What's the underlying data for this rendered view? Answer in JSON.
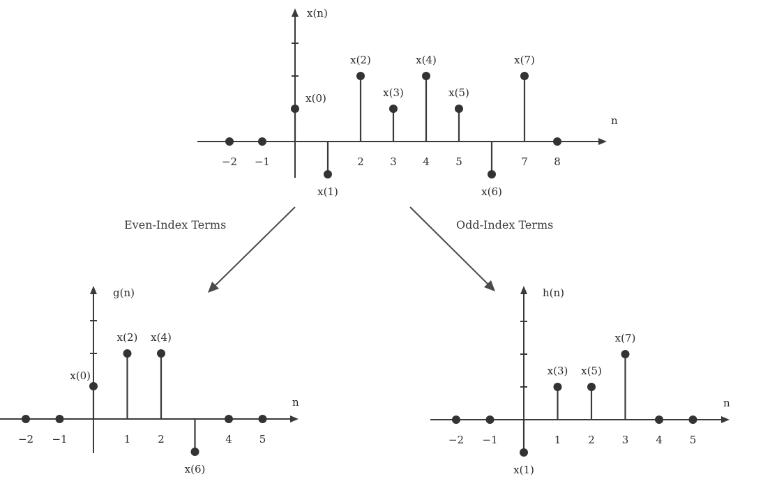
{
  "plots": [
    {
      "id": "top",
      "ylabel": "x(n)",
      "xlabel": "n",
      "points": [
        {
          "n": -2,
          "v": 0
        },
        {
          "n": -1,
          "v": 0
        },
        {
          "n": 0,
          "v": 1,
          "label": "x(0)"
        },
        {
          "n": 1,
          "v": -1,
          "label": "x(1)"
        },
        {
          "n": 2,
          "v": 2,
          "label": "x(2)"
        },
        {
          "n": 3,
          "v": 1,
          "label": "x(3)"
        },
        {
          "n": 4,
          "v": 2,
          "label": "x(4)"
        },
        {
          "n": 5,
          "v": 1,
          "label": "x(5)"
        },
        {
          "n": 6,
          "v": -1,
          "label": "x(6)"
        },
        {
          "n": 7,
          "v": 2,
          "label": "x(7)"
        },
        {
          "n": 8,
          "v": 0
        }
      ],
      "ticks": [
        "−2",
        "−1",
        "2",
        "3",
        "4",
        "5",
        "7",
        "8"
      ],
      "tick_positions": [
        -2,
        -1,
        2,
        3,
        4,
        5,
        7,
        8
      ]
    },
    {
      "id": "even",
      "ylabel": "g(n)",
      "xlabel": "n",
      "points": [
        {
          "n": -2,
          "v": 0
        },
        {
          "n": -1,
          "v": 0
        },
        {
          "n": 0,
          "v": 1,
          "label": "x(0)"
        },
        {
          "n": 1,
          "v": 2,
          "label": "x(2)"
        },
        {
          "n": 2,
          "v": 2,
          "label": "x(4)"
        },
        {
          "n": 3,
          "v": -1,
          "label": "x(6)"
        },
        {
          "n": 4,
          "v": 0
        },
        {
          "n": 5,
          "v": 0
        }
      ],
      "ticks": [
        "−2",
        "−1",
        "1",
        "2",
        "4",
        "5"
      ],
      "tick_positions": [
        -2,
        -1,
        1,
        2,
        4,
        5
      ]
    },
    {
      "id": "odd",
      "ylabel": "h(n)",
      "xlabel": "n",
      "points": [
        {
          "n": -2,
          "v": 0
        },
        {
          "n": -1,
          "v": 0
        },
        {
          "n": 0,
          "v": -1,
          "label": "x(1)"
        },
        {
          "n": 1,
          "v": 1,
          "label": "x(3)"
        },
        {
          "n": 2,
          "v": 1,
          "label": "x(5)"
        },
        {
          "n": 3,
          "v": 2,
          "label": "x(7)"
        },
        {
          "n": 4,
          "v": 0
        },
        {
          "n": 5,
          "v": 0
        }
      ],
      "ticks": [
        "−2",
        "−1",
        "1",
        "2",
        "3",
        "4",
        "5"
      ],
      "tick_positions": [
        -2,
        -1,
        1,
        2,
        3,
        4,
        5
      ]
    }
  ],
  "arrows": {
    "even_label": "Even-Index Terms",
    "odd_label": "Odd-Index Terms"
  }
}
